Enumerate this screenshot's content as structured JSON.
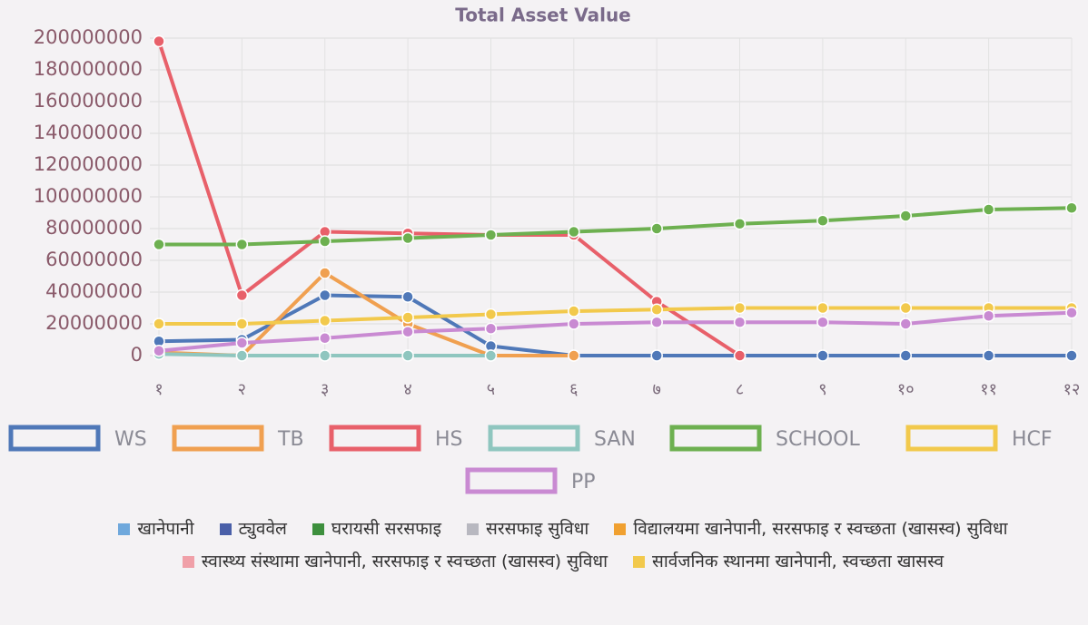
{
  "chart_data": {
    "type": "line",
    "title": "Total Asset Value",
    "categories": [
      "१",
      "२",
      "३",
      "४",
      "५",
      "६",
      "७",
      "८",
      "९",
      "१०",
      "११",
      "१२"
    ],
    "ylim": [
      0,
      200000000
    ],
    "yticks": [
      0,
      20000000,
      40000000,
      60000000,
      80000000,
      100000000,
      120000000,
      140000000,
      160000000,
      180000000,
      200000000
    ],
    "grid": true,
    "series": [
      {
        "name": "WS",
        "color": "#4f78b8",
        "values": [
          9000000,
          10000000,
          38000000,
          37000000,
          6000000,
          0,
          0,
          0,
          0,
          0,
          0,
          0
        ]
      },
      {
        "name": "TB",
        "color": "#f0a050",
        "values": [
          2000000,
          0,
          52000000,
          20000000,
          0,
          0,
          null,
          null,
          null,
          null,
          null,
          null
        ]
      },
      {
        "name": "HS",
        "color": "#e8606a",
        "values": [
          198000000,
          38000000,
          78000000,
          77000000,
          76000000,
          76000000,
          34000000,
          0,
          null,
          null,
          null,
          null
        ]
      },
      {
        "name": "SAN",
        "color": "#8fc6bf",
        "values": [
          1000000,
          0,
          0,
          0,
          0,
          null,
          null,
          null,
          null,
          null,
          null,
          null
        ]
      },
      {
        "name": "SCHOOL",
        "color": "#6db050",
        "values": [
          70000000,
          70000000,
          72000000,
          74000000,
          76000000,
          78000000,
          80000000,
          83000000,
          85000000,
          88000000,
          92000000,
          93000000
        ]
      },
      {
        "name": "HCF",
        "color": "#f2c94c",
        "values": [
          20000000,
          20000000,
          22000000,
          24000000,
          26000000,
          28000000,
          29000000,
          30000000,
          30000000,
          30000000,
          30000000,
          30000000
        ]
      },
      {
        "name": "PP",
        "color": "#c98ad2",
        "values": [
          3000000,
          8000000,
          11000000,
          15000000,
          17000000,
          20000000,
          21000000,
          21000000,
          21000000,
          20000000,
          25000000,
          27000000
        ]
      }
    ]
  },
  "footer_legend": [
    {
      "label": "खानेपानी",
      "color": "#6fa8dc"
    },
    {
      "label": "ट्युववेल",
      "color": "#4a5fa8"
    },
    {
      "label": "घरायसी सरसफाइ",
      "color": "#3d8f3d"
    },
    {
      "label": "सरसफाइ सुविधा",
      "color": "#b8b8c0"
    },
    {
      "label": "विद्यालयमा खानेपानी, सरसफाइ र स्वच्छता (खासस्व) सुविधा",
      "color": "#f0a030"
    },
    {
      "label": "स्वास्थ्य संस्थामा खानेपानी, सरसफाइ र स्वच्छता (खासस्व) सुविधा",
      "color": "#f0a0a8"
    },
    {
      "label": "सार्वजनिक स्थानमा खानेपानी, स्वच्छता खासस्व",
      "color": "#f2c94c"
    }
  ]
}
